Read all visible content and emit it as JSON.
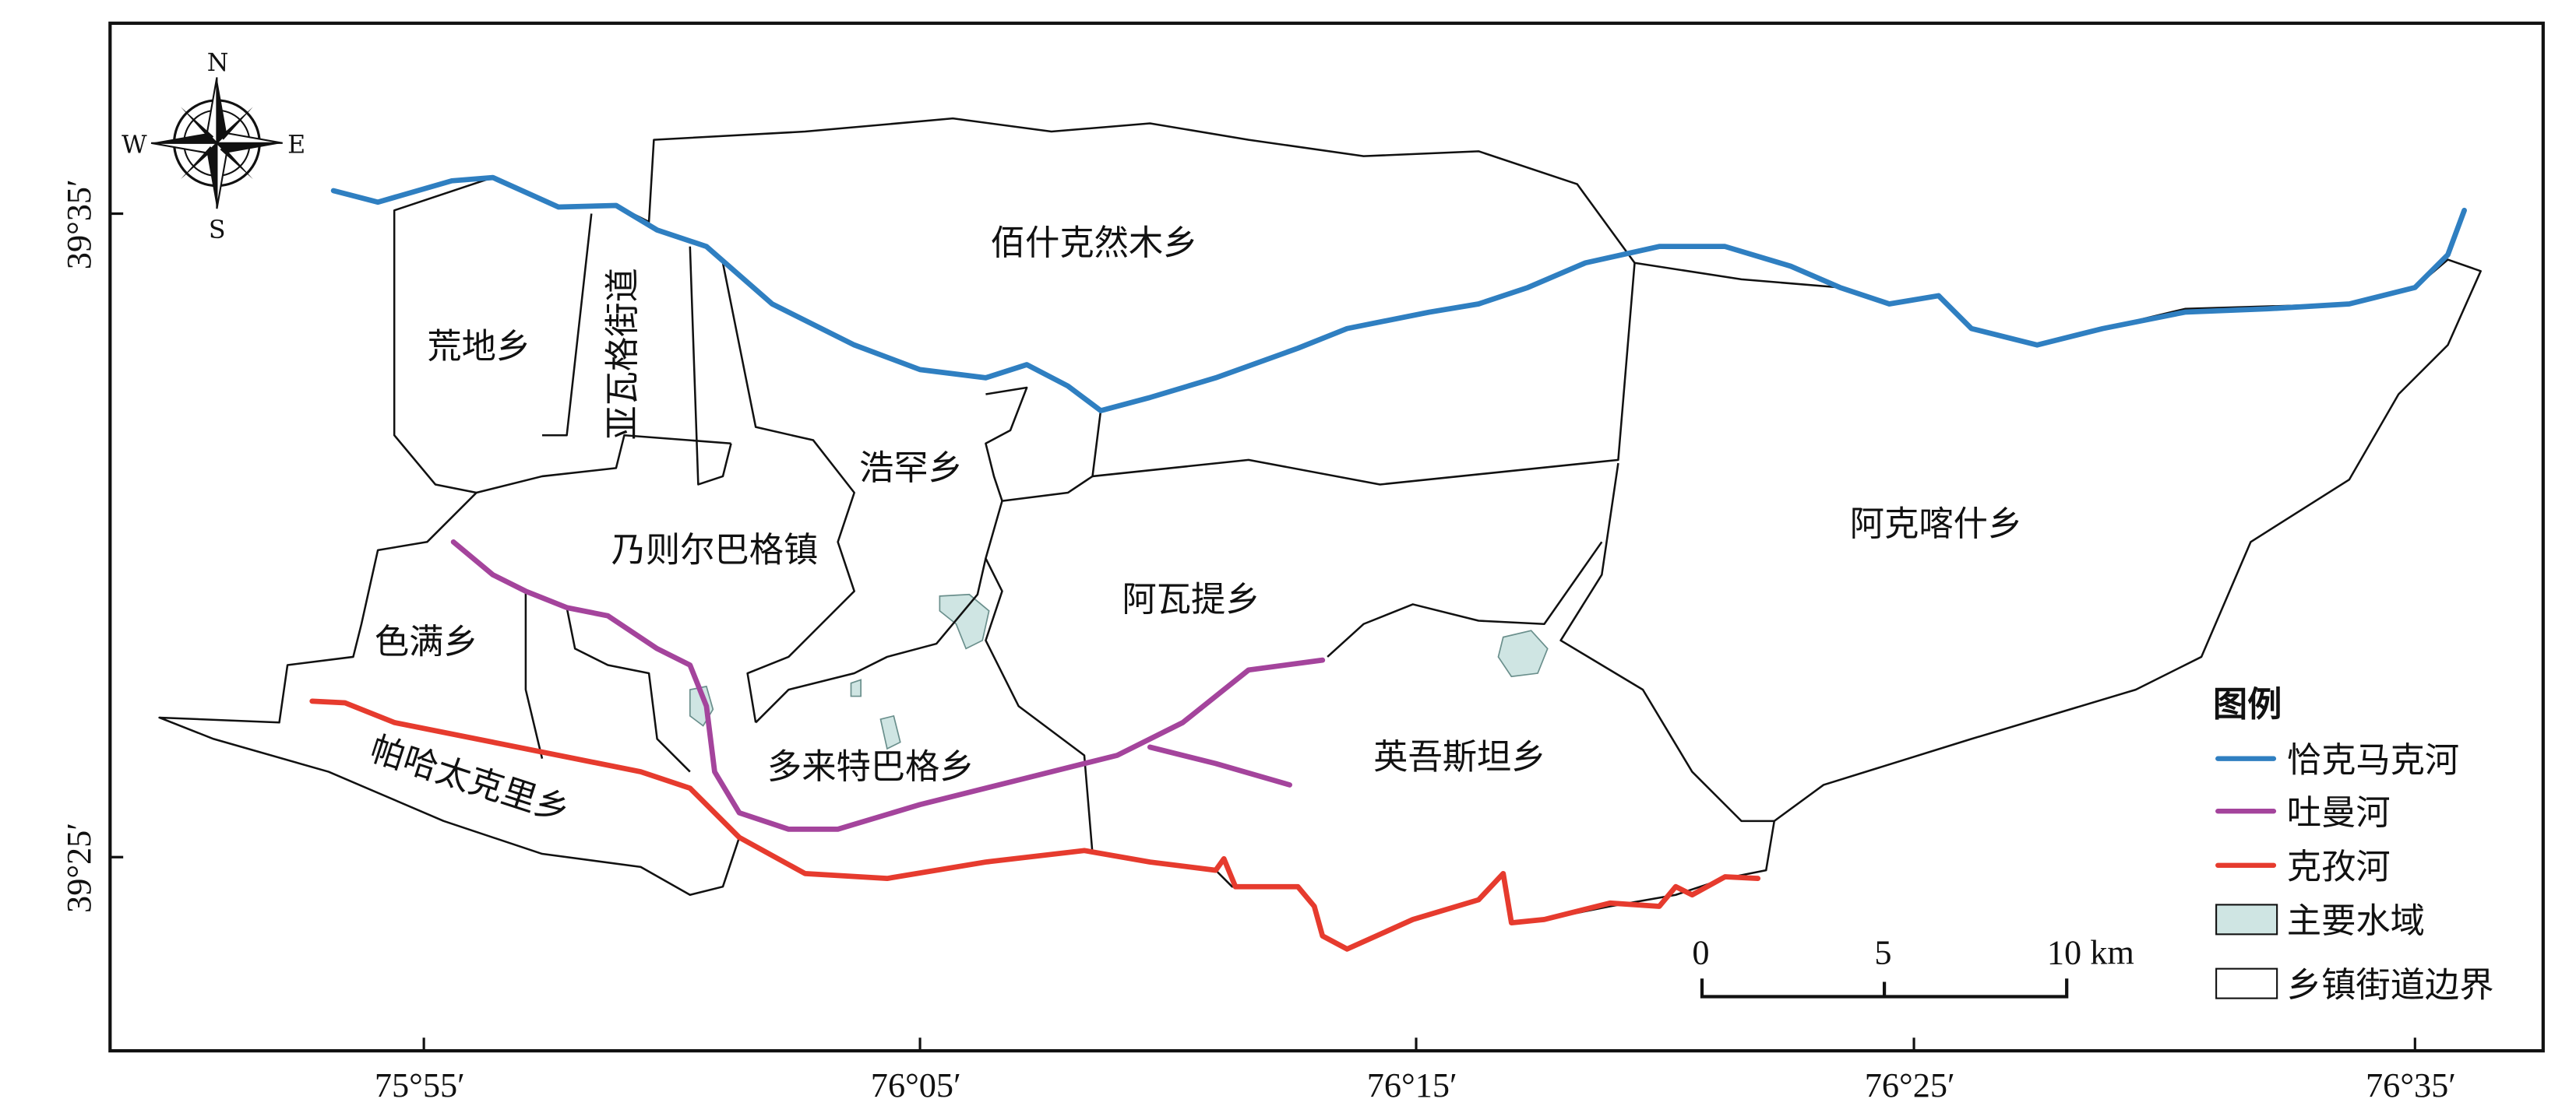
{
  "colors": {
    "river_qiakemake": "#2f7fc1",
    "river_tuman": "#a4449c",
    "river_kezi": "#e63b2e",
    "water": "#cfe5e3",
    "boundary": "#111111"
  },
  "compass": {
    "n": "N",
    "s": "S",
    "e": "E",
    "w": "W",
    "icon": "compass-rose-icon"
  },
  "axes": {
    "x_ticks": [
      "75°55′",
      "76°05′",
      "76°15′",
      "76°25′",
      "76°35′"
    ],
    "y_ticks": [
      "39°35′",
      "39°25′"
    ]
  },
  "regions": [
    {
      "name": "佰什克然木乡"
    },
    {
      "name": "荒地乡"
    },
    {
      "name": "亚瓦格街道"
    },
    {
      "name": "浩罕乡"
    },
    {
      "name": "乃则尔巴格镇"
    },
    {
      "name": "阿瓦提乡"
    },
    {
      "name": "阿克喀什乡"
    },
    {
      "name": "色满乡"
    },
    {
      "name": "多来特巴格乡"
    },
    {
      "name": "英吾斯坦乡"
    },
    {
      "name": "帕哈太克里乡"
    }
  ],
  "scale_bar": {
    "labels": [
      "0",
      "5",
      "10 km"
    ]
  },
  "legend": {
    "title": "图例",
    "items": [
      {
        "label": "恰克马克河",
        "type": "line"
      },
      {
        "label": "吐曼河",
        "type": "line"
      },
      {
        "label": "克孜河",
        "type": "line"
      },
      {
        "label": "主要水域",
        "type": "fill"
      },
      {
        "label": "乡镇街道边界",
        "type": "outline"
      }
    ]
  }
}
